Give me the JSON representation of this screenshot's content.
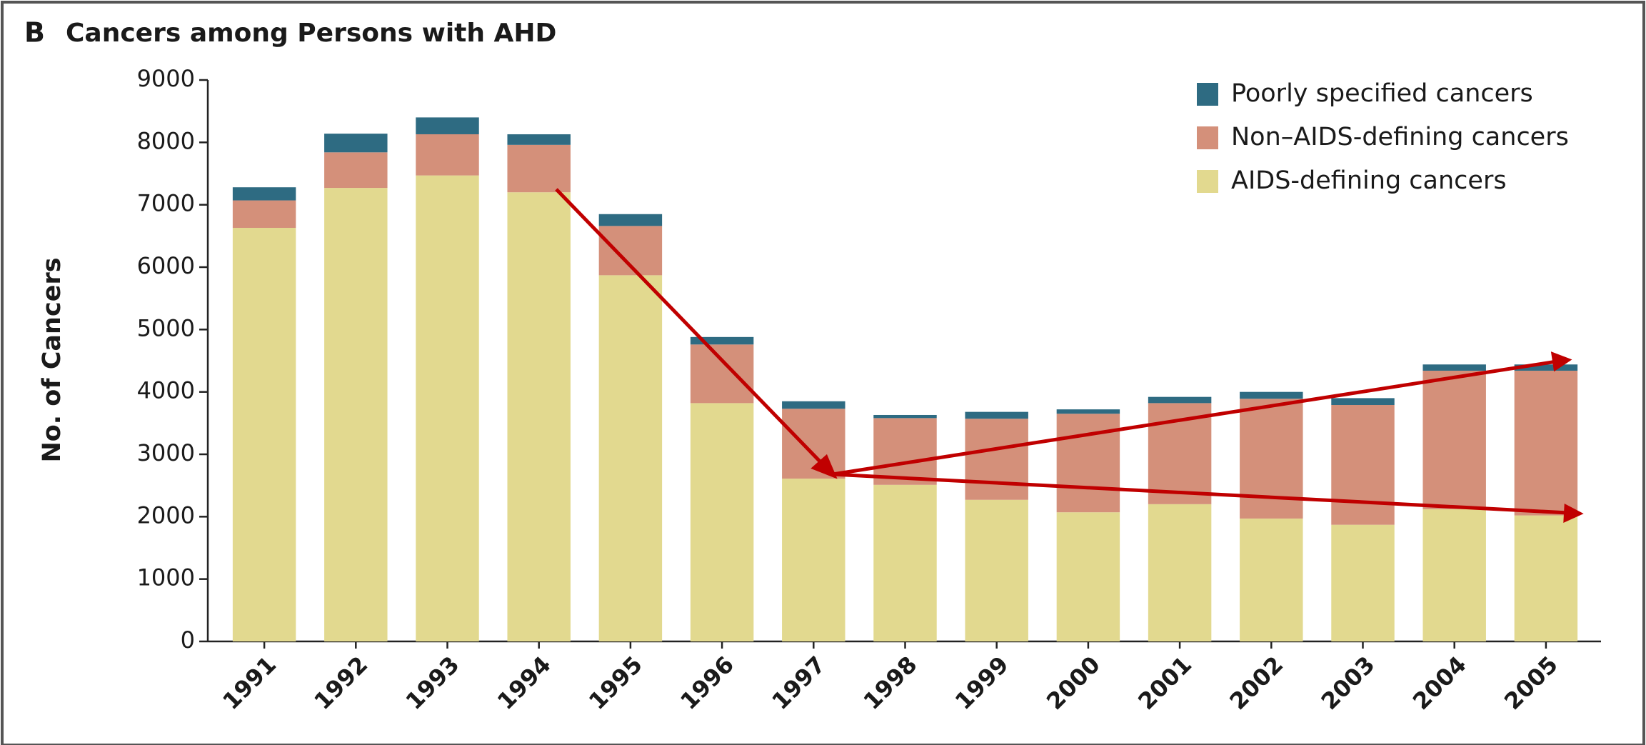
{
  "chart_data": {
    "type": "stacked-bar",
    "panel_label": "B",
    "title": "Cancers among Persons with AHD",
    "y_label": "No. of Cancers",
    "categories": [
      "1991",
      "1992",
      "1993",
      "1994",
      "1995",
      "1996",
      "1997",
      "1998",
      "1999",
      "2000",
      "2001",
      "2002",
      "2003",
      "2004",
      "2005"
    ],
    "series": [
      {
        "name": "AIDS-defining cancers",
        "color": "#e2d98f",
        "values": [
          6630,
          7270,
          7470,
          7200,
          5870,
          3820,
          2610,
          2510,
          2270,
          2070,
          2200,
          1970,
          1870,
          2120,
          2020
        ]
      },
      {
        "name": "Non–AIDS-defining cancers",
        "color": "#d4907a",
        "values": [
          440,
          570,
          660,
          760,
          790,
          940,
          1120,
          1070,
          1300,
          1580,
          1620,
          1920,
          1920,
          2220,
          2320
        ]
      },
      {
        "name": "Poorly specified cancers",
        "color": "#2e6b82",
        "values": [
          210,
          300,
          270,
          170,
          190,
          120,
          120,
          50,
          110,
          70,
          100,
          110,
          110,
          100,
          100
        ]
      }
    ],
    "ylim": [
      0,
      9000
    ],
    "yticks": [
      0,
      1000,
      2000,
      3000,
      4000,
      5000,
      6000,
      7000,
      8000,
      9000
    ],
    "legend": "top-right"
  }
}
